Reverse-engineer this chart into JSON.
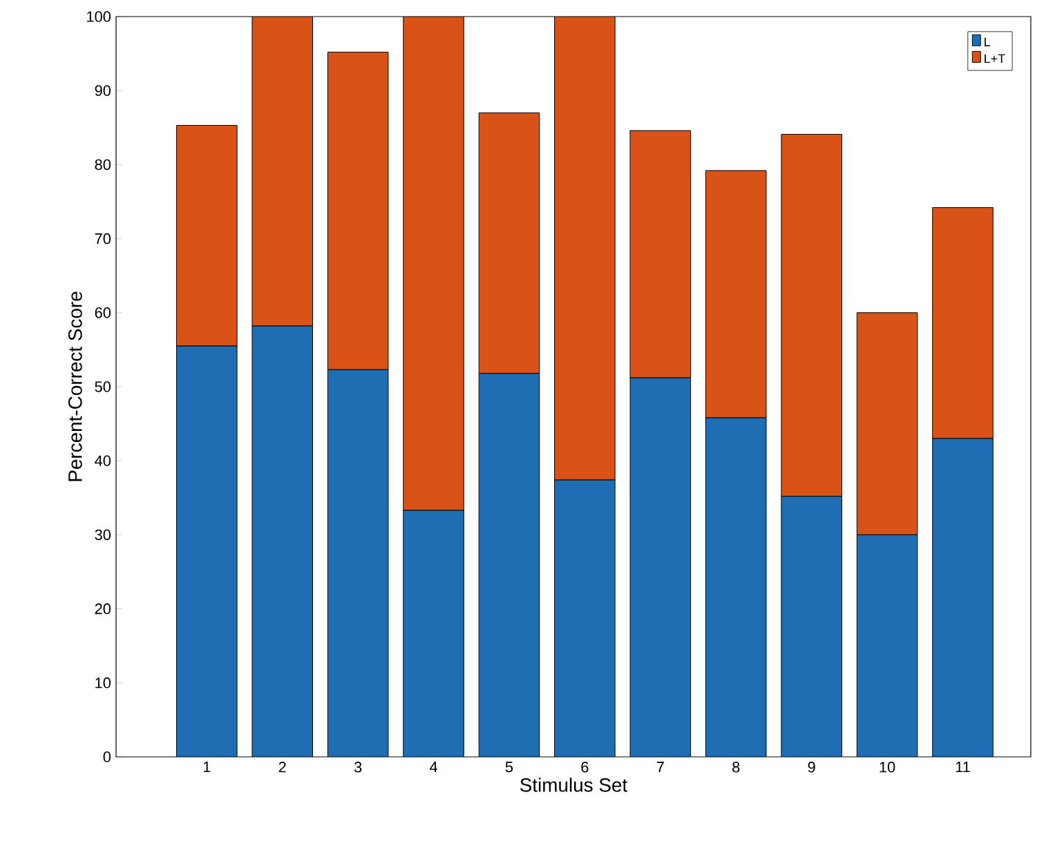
{
  "chart_data": {
    "type": "bar",
    "stacked": true,
    "xlabel": "Stimulus Set",
    "ylabel": "Percent-Correct Score",
    "categories": [
      "1",
      "2",
      "3",
      "4",
      "5",
      "6",
      "7",
      "8",
      "9",
      "10",
      "11"
    ],
    "series": [
      {
        "name": "L",
        "color": "#1f6eb4",
        "values": [
          55.5,
          58.2,
          52.3,
          33.3,
          51.8,
          37.4,
          51.2,
          45.8,
          35.2,
          30,
          43
        ]
      },
      {
        "name": "L+T",
        "color": "#d95319",
        "values": [
          29.8,
          41.8,
          42.9,
          66.7,
          35.2,
          62.6,
          33.4,
          33.4,
          48.9,
          30,
          31.2
        ]
      }
    ],
    "ylim": [
      0,
      100
    ],
    "yticks": [
      0,
      10,
      20,
      30,
      40,
      50,
      60,
      70,
      80,
      90,
      100
    ],
    "legend": "top right",
    "grid": false
  }
}
